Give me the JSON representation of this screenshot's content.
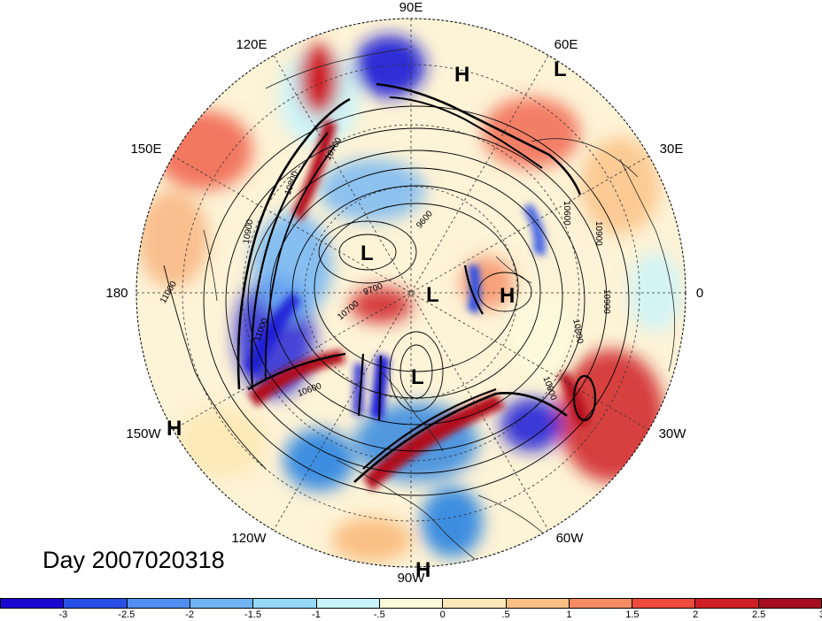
{
  "map": {
    "projection": "north polar stereographic",
    "longitude_labels": [
      "90E",
      "60E",
      "30E",
      "0",
      "30W",
      "60W",
      "90W",
      "120W",
      "150W",
      "180",
      "150E",
      "120E"
    ],
    "contour_labels": [
      "11000",
      "10900",
      "10800",
      "10700",
      "10600",
      "10600",
      "9600",
      "9700",
      "10900",
      "10800",
      "10900",
      "10600",
      "10700",
      "11000"
    ],
    "pressure_centers": [
      {
        "label": "H"
      },
      {
        "label": "L"
      },
      {
        "label": "L"
      },
      {
        "label": "L"
      },
      {
        "label": "H"
      },
      {
        "label": "L"
      },
      {
        "label": "H"
      },
      {
        "label": "H"
      }
    ],
    "anomaly_colors": {
      "strong_negative": "#1a1ad6",
      "negative": "#3d8ee0",
      "weak_negative": "#a8ecfa",
      "weak_positive": "#fdefbe",
      "positive": "#f0604a",
      "strong_positive": "#b3101f"
    }
  },
  "title": {
    "day_label": "Day 2007020318"
  },
  "colorbar": {
    "colors": [
      "#1a08d0",
      "#2950e6",
      "#4f8ef0",
      "#70b4f4",
      "#95d8f8",
      "#c8f4fc",
      "#fdfadc",
      "#fde9b8",
      "#fbc084",
      "#f58c63",
      "#ec4b3e",
      "#cf1f26",
      "#a60d1e"
    ],
    "tick_labels": [
      "-3",
      "-2.5",
      "-2",
      "-1.5",
      "-1",
      "-.5",
      "0",
      ".5",
      "1",
      "1.5",
      "2",
      "2.5",
      "3"
    ]
  }
}
